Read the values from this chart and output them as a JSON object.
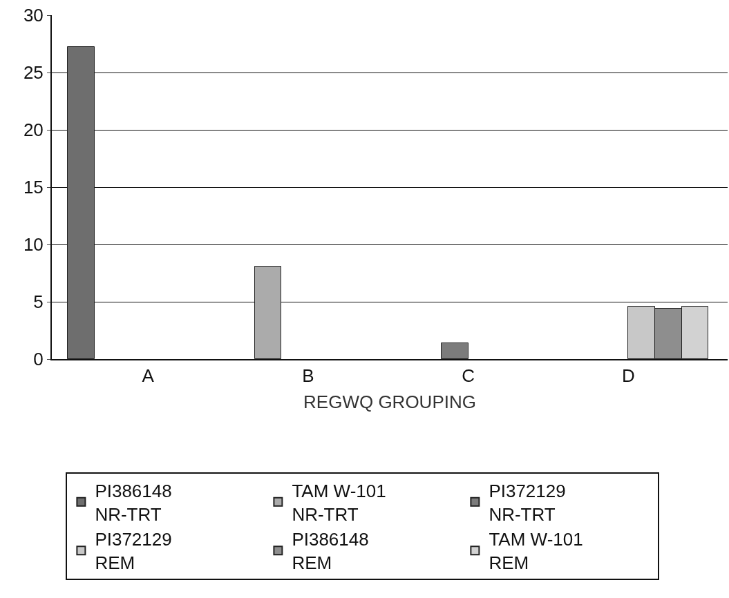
{
  "chart_data": {
    "type": "bar",
    "xlabel": "REGWQ GROUPING",
    "categories": [
      "A",
      "B",
      "C",
      "D"
    ],
    "series": [
      {
        "name": "PI386148\nNR-TRT",
        "color": "#6e6e6e",
        "values": [
          27.2,
          null,
          null,
          null
        ]
      },
      {
        "name": "TAM W-101\nNR-TRT",
        "color": "#ababab",
        "values": [
          null,
          8.1,
          null,
          null
        ]
      },
      {
        "name": "PI372129\nNR-TRT",
        "color": "#7c7c7c",
        "values": [
          null,
          null,
          1.4,
          null
        ]
      },
      {
        "name": "PI372129\nREM",
        "color": "#c8c8c8",
        "values": [
          null,
          null,
          null,
          4.6
        ]
      },
      {
        "name": "PI386148\nREM",
        "color": "#8e8e8e",
        "values": [
          null,
          null,
          null,
          4.4
        ]
      },
      {
        "name": "TAM W-101\nREM",
        "color": "#d2d2d2",
        "values": [
          null,
          null,
          null,
          4.6
        ]
      }
    ],
    "ylim": [
      0,
      30
    ],
    "yticks": [
      0,
      5,
      10,
      15,
      20,
      25,
      30
    ],
    "grid": "y",
    "legend": "bottom"
  }
}
